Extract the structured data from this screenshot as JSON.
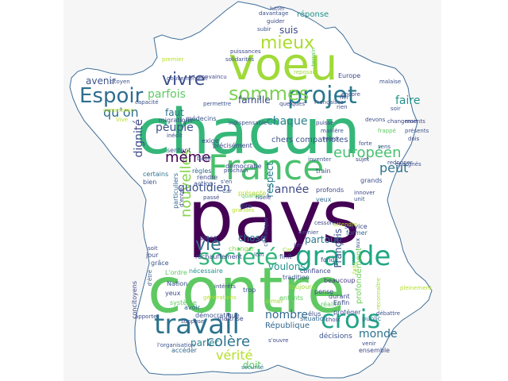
{
  "colors": {
    "background": "#ffffff",
    "panel": "#f6f6f6",
    "map_fill": "#ffffff",
    "map_outline": "#3f6f9a"
  },
  "words": [
    {
      "text": "contre",
      "color": "#5ec962"
    },
    {
      "text": "pays",
      "color": "#440154"
    },
    {
      "text": "chacun",
      "color": "#35b779"
    },
    {
      "text": "voeu",
      "color": "#a0da39"
    },
    {
      "text": "France",
      "color": "#4ac16d"
    },
    {
      "text": "travail",
      "color": "#2c728e"
    },
    {
      "text": "grande",
      "color": "#21a685"
    },
    {
      "text": "crois",
      "color": "#20a486"
    },
    {
      "text": "projet",
      "color": "#2a788e"
    },
    {
      "text": "sommes",
      "color": "#7ad151"
    },
    {
      "text": "Espoir",
      "color": "#2e6e8e"
    },
    {
      "text": "société",
      "color": "#31b57b"
    },
    {
      "text": "vivre",
      "color": "#3b528b"
    },
    {
      "text": "mieux",
      "color": "#addc30"
    },
    {
      "text": "nouvelles",
      "color": "#86d549"
    },
    {
      "text": "même",
      "color": "#440154"
    },
    {
      "text": "vie",
      "color": "#2d708e"
    },
    {
      "text": "colère",
      "color": "#2c738e"
    },
    {
      "text": "européen",
      "color": "#46c06f"
    },
    {
      "text": "vérité",
      "color": "#b5de2b"
    },
    {
      "text": "quotidien",
      "color": "#3b528b"
    },
    {
      "text": "l'année",
      "color": "#3e4989"
    },
    {
      "text": "chaque",
      "color": "#26828e"
    },
    {
      "text": "respect",
      "color": "#277f8e"
    },
    {
      "text": "Français",
      "color": "#3b528b"
    },
    {
      "text": "peut",
      "color": "#2c728e"
    },
    {
      "text": "faire",
      "color": "#21918c"
    },
    {
      "text": "qu'on",
      "color": "#2e6e8e"
    },
    {
      "text": "parfois",
      "color": "#5ec962"
    },
    {
      "text": "peuple",
      "color": "#3b528b"
    },
    {
      "text": "suis",
      "color": "#3e4989"
    },
    {
      "text": "famille",
      "color": "#3e4a89"
    },
    {
      "text": "nombre",
      "color": "#31688e"
    },
    {
      "text": "monde",
      "color": "#2c728e"
    },
    {
      "text": "partout",
      "color": "#2a788e"
    },
    {
      "text": "chose",
      "color": "#2c728e"
    },
    {
      "text": "parler",
      "color": "#26828e"
    },
    {
      "text": "avenir",
      "color": "#3b528b"
    },
    {
      "text": "faut",
      "color": "#2d708e"
    },
    {
      "text": "dignité",
      "color": "#3e4989"
    },
    {
      "text": "doit",
      "color": "#5ec962"
    },
    {
      "text": "voulons",
      "color": "#21918c"
    },
    {
      "text": "profondément",
      "color": "#6ece58"
    },
    {
      "text": "chers compatriotes",
      "color": "#3b528b"
    },
    {
      "text": "réponse",
      "color": "#21918c"
    },
    {
      "text": "Europe",
      "color": "#3e4989"
    },
    {
      "text": "particuliers",
      "color": "#31688e"
    },
    {
      "text": "sécurité",
      "color": "#2a788e"
    },
    {
      "text": "accéder",
      "color": "#31688e"
    },
    {
      "text": "concitoyens",
      "color": "#3e4989"
    },
    {
      "text": "République",
      "color": "#31688e"
    },
    {
      "text": "décisions",
      "color": "#3b528b"
    },
    {
      "text": "ensemble",
      "color": "#3e4989"
    },
    {
      "text": "système",
      "color": "#5ec962"
    },
    {
      "text": "Nation",
      "color": "#3b528b"
    },
    {
      "text": "nécessaire",
      "color": "#21918c"
    },
    {
      "text": "confiance",
      "color": "#3e4989"
    },
    {
      "text": "beaucoup",
      "color": "#46337e"
    },
    {
      "text": "réalité",
      "color": "#5ec962"
    },
    {
      "text": "protéger",
      "color": "#3b528b"
    },
    {
      "text": "situation",
      "color": "#31688e"
    },
    {
      "text": "durant",
      "color": "#3e4989"
    },
    {
      "text": "élus",
      "color": "#3b528b"
    },
    {
      "text": "pense",
      "color": "#3e4989"
    },
    {
      "text": "Enfin",
      "color": "#3e4989"
    },
    {
      "text": "public",
      "color": "#2c728e"
    },
    {
      "text": "former",
      "color": "#31688e"
    },
    {
      "text": "service",
      "color": "#3e4989"
    },
    {
      "text": "grands",
      "color": "#3b528b"
    },
    {
      "text": "veux",
      "color": "#31688e"
    },
    {
      "text": "profonds",
      "color": "#3e4989"
    },
    {
      "text": "dire",
      "color": "#3b528b"
    },
    {
      "text": "train",
      "color": "#3b528b"
    },
    {
      "text": "précisément",
      "color": "#3e4989"
    },
    {
      "text": "bâtir",
      "color": "#3b528b"
    },
    {
      "text": "démocratie",
      "color": "#3e4989"
    },
    {
      "text": "règles",
      "color": "#31688e"
    },
    {
      "text": "rendre",
      "color": "#3e4989"
    },
    {
      "text": "action",
      "color": "#3b528b"
    },
    {
      "text": "migrations",
      "color": "#3e4989"
    },
    {
      "text": "médecins",
      "color": "#3b528b"
    },
    {
      "text": "exige",
      "color": "#3e4989"
    },
    {
      "text": "sentent",
      "color": "#3b528b"
    },
    {
      "text": "certains",
      "color": "#2c728e"
    },
    {
      "text": "bien",
      "color": "#3b528b"
    },
    {
      "text": "réchauffement",
      "color": "#3e4989"
    },
    {
      "text": "place",
      "color": "#3b528b"
    },
    {
      "text": "jour",
      "color": "#3e4989"
    },
    {
      "text": "grâce",
      "color": "#3b528b"
    },
    {
      "text": "L'ordre",
      "color": "#5ec962"
    },
    {
      "text": "yeux",
      "color": "#3e4989"
    },
    {
      "text": "avoir",
      "color": "#31688e"
    },
    {
      "text": "démocratique",
      "color": "#3b528b"
    },
    {
      "text": "maîtrise",
      "color": "#3e4989"
    },
    {
      "text": "trop",
      "color": "#3b528b"
    },
    {
      "text": "aimer",
      "color": "#a0da39"
    },
    {
      "text": "enfants",
      "color": "#5ec962"
    },
    {
      "text": "changer",
      "color": "#86d549"
    },
    {
      "text": "finit",
      "color": "#3e4989"
    },
    {
      "text": "toujours",
      "color": "#a0da39"
    },
    {
      "text": "tradition",
      "color": "#3b528b"
    },
    {
      "text": "fond",
      "color": "#3b528b"
    },
    {
      "text": "lutter",
      "color": "#3e4989"
    },
    {
      "text": "davantage",
      "color": "#3b528b"
    },
    {
      "text": "guider",
      "color": "#3e4989"
    },
    {
      "text": "subir",
      "color": "#3b528b"
    },
    {
      "text": "puissances",
      "color": "#3e4989"
    },
    {
      "text": "solidarités",
      "color": "#3b528b"
    },
    {
      "text": "reposant",
      "color": "#a0da39"
    },
    {
      "text": "convaincu",
      "color": "#3e4989"
    },
    {
      "text": "permettre",
      "color": "#3b528b"
    },
    {
      "text": "quelques",
      "color": "#3e4989"
    },
    {
      "text": "Françaises",
      "color": "#3b528b"
    },
    {
      "text": "encore",
      "color": "#3e4989"
    },
    {
      "text": "malaise",
      "color": "#3b528b"
    },
    {
      "text": "devons",
      "color": "#3b528b"
    },
    {
      "text": "mois",
      "color": "#3e4989"
    },
    {
      "text": "présents",
      "color": "#3b528b"
    },
    {
      "text": "dois",
      "color": "#3e4989"
    },
    {
      "text": "forte",
      "color": "#3b528b"
    },
    {
      "text": "sens",
      "color": "#3b528b"
    },
    {
      "text": "sujet",
      "color": "#3e4989"
    },
    {
      "text": "redonner",
      "color": "#3b528b"
    },
    {
      "text": "innover",
      "color": "#3e4989"
    },
    {
      "text": "unit",
      "color": "#3b528b"
    },
    {
      "text": "puisse",
      "color": "#3e4989"
    },
    {
      "text": "manière",
      "color": "#3b528b"
    },
    {
      "text": "voeux",
      "color": "#3e4989"
    },
    {
      "text": "inventer",
      "color": "#3b528b"
    },
    {
      "text": "prochain",
      "color": "#3e4989"
    },
    {
      "text": "s'en",
      "color": "#3b528b"
    },
    {
      "text": "d'entre",
      "color": "#3e4989"
    },
    {
      "text": "indispensable",
      "color": "#3b528b"
    },
    {
      "text": "Vive",
      "color": "#b5de2b"
    },
    {
      "text": "citoyen",
      "color": "#3b528b"
    },
    {
      "text": "commence",
      "color": "#b5de2b"
    },
    {
      "text": "capacité",
      "color": "#3b528b"
    },
    {
      "text": "gouvernement",
      "color": "#3e4989"
    },
    {
      "text": "premier",
      "color": "#b5de2b"
    },
    {
      "text": "inédit",
      "color": "#3e4989"
    },
    {
      "text": "grandes",
      "color": "#b5de2b"
    },
    {
      "text": "loin",
      "color": "#3b528b"
    },
    {
      "text": "soit",
      "color": "#3e4989"
    },
    {
      "text": "d'être",
      "color": "#3b528b"
    },
    {
      "text": "apporter",
      "color": "#3e4989"
    },
    {
      "text": "l'organisation",
      "color": "#3b528b"
    },
    {
      "text": "venir",
      "color": "#3e4989"
    },
    {
      "text": "suppose",
      "color": "#3b528b"
    },
    {
      "text": "intérêts",
      "color": "#3e4989"
    },
    {
      "text": "générations",
      "color": "#b5de2b"
    },
    {
      "text": "choix",
      "color": "#3e4989"
    },
    {
      "text": "débattre",
      "color": "#3b528b"
    },
    {
      "text": "s'ouvre",
      "color": "#3e4989"
    },
    {
      "text": "fier",
      "color": "#3b528b"
    },
    {
      "text": "rien",
      "color": "#3e4989"
    },
    {
      "text": "soir",
      "color": "#3b528b"
    },
    {
      "text": "changements",
      "color": "#3e4989"
    },
    {
      "text": "frappé",
      "color": "#5ec962"
    },
    {
      "text": "épargnés",
      "color": "#3b528b"
    },
    {
      "text": "fidèle",
      "color": "#3e4989"
    },
    {
      "text": "dernier",
      "color": "#3b528b"
    },
    {
      "text": "cessons",
      "color": "#3e4989"
    },
    {
      "text": "climatique",
      "color": "#3b528b"
    },
    {
      "text": "quartier",
      "color": "#5ec962"
    },
    {
      "text": "Car",
      "color": "#3b528b"
    },
    {
      "text": "passé",
      "color": "#3e4989"
    },
    {
      "text": "Ler",
      "color": "#3b528b"
    },
    {
      "text": "Car",
      "color": "#a0da39"
    },
    {
      "text": "terrain",
      "color": "#5ec962"
    },
    {
      "text": "aux",
      "color": "#3b528b"
    },
    {
      "text": "reconnaître",
      "color": "#a0da39"
    },
    {
      "text": "pleinement",
      "color": "#b5de2b"
    },
    {
      "text": "faits",
      "color": "#b5de2b"
    },
    {
      "text": "attendre",
      "color": "#b5de2b"
    },
    {
      "text": "présente",
      "color": "#b5de2b"
    }
  ]
}
